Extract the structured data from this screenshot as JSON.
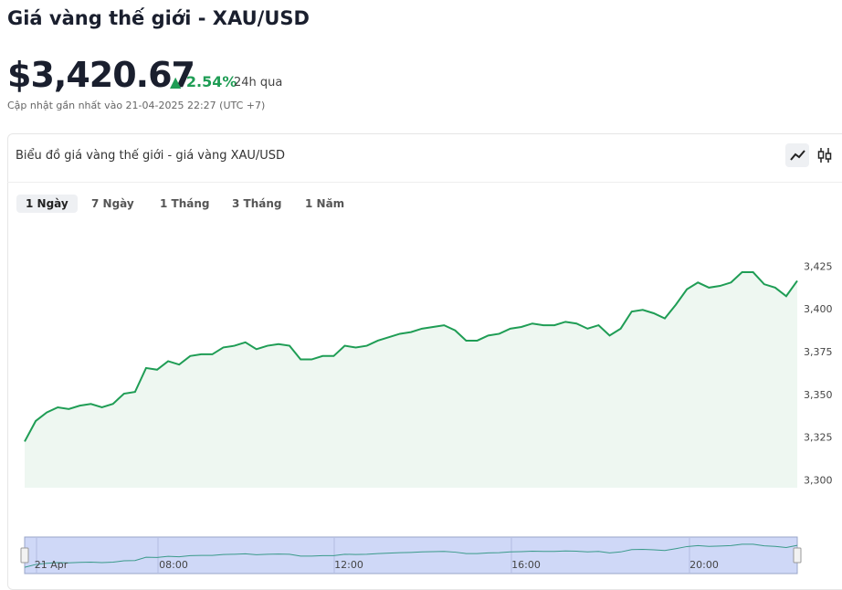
{
  "header": {
    "title": "Giá vàng thế giới - XAU/USD",
    "price": "$3,420.67",
    "change": "2.54%",
    "change_period": "24h qua",
    "updated": "Cập nhật gần nhất vào 21-04-2025 22:27 (UTC +7)"
  },
  "card": {
    "title": "Biểu đồ giá vàng thế giới - giá vàng XAU/USD",
    "tabs": [
      "1 Ngày",
      "7 Ngày",
      "1 Tháng",
      "3 Tháng",
      "1 Năm"
    ]
  },
  "chart_data": {
    "type": "area",
    "color": "#1f9d55",
    "values": [
      3323,
      3335,
      3340,
      3343,
      3342,
      3344,
      3345,
      3343,
      3345,
      3351,
      3352,
      3366,
      3365,
      3370,
      3368,
      3373,
      3374,
      3374,
      3378,
      3379,
      3381,
      3377,
      3379,
      3380,
      3379,
      3371,
      3371,
      3373,
      3373,
      3379,
      3378,
      3379,
      3382,
      3384,
      3386,
      3387,
      3389,
      3390,
      3391,
      3388,
      3382,
      3382,
      3385,
      3386,
      3389,
      3390,
      3392,
      3391,
      3391,
      3393,
      3392,
      3389,
      3391,
      3385,
      3389,
      3399,
      3400,
      3398,
      3395,
      3403,
      3412,
      3416,
      3413,
      3414,
      3416,
      3422,
      3422,
      3415,
      3413,
      3408,
      3417
    ],
    "ylim": [
      3296,
      3453
    ],
    "yticks": [
      {
        "value": 3300,
        "label": "3,300"
      },
      {
        "value": 3325,
        "label": "3,325"
      },
      {
        "value": 3350,
        "label": "3,350"
      },
      {
        "value": 3375,
        "label": "3,375"
      },
      {
        "value": 3400,
        "label": "3,400"
      },
      {
        "value": 3425,
        "label": "3,425"
      }
    ],
    "navigator_labels": [
      "21 Apr",
      "08:00",
      "12:00",
      "16:00",
      "20:00"
    ]
  }
}
